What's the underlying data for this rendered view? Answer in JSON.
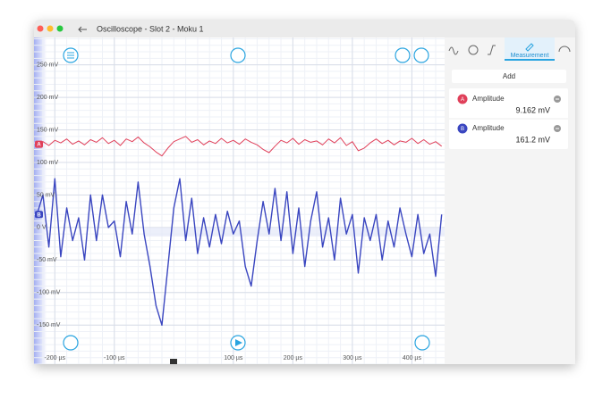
{
  "window": {
    "title": "Oscilloscope - Slot 2 - Moku 1"
  },
  "chart_data": {
    "type": "line",
    "x": [
      -230,
      -220,
      -210,
      -200,
      -190,
      -180,
      -170,
      -160,
      -150,
      -140,
      -130,
      -120,
      -110,
      -100,
      -90,
      -80,
      -70,
      -60,
      -50,
      -40,
      -30,
      -20,
      -10,
      0,
      10,
      20,
      30,
      40,
      50,
      60,
      70,
      80,
      90,
      100,
      110,
      120,
      130,
      140,
      150,
      160,
      170,
      180,
      190,
      200,
      210,
      220,
      230,
      240,
      250,
      260,
      270,
      280,
      290,
      300,
      310,
      320,
      330,
      340,
      350,
      360,
      370,
      380,
      390,
      400,
      410,
      420,
      430,
      440,
      450
    ],
    "series": [
      {
        "name": "A",
        "color": "#e0405a",
        "values": [
          128,
          132,
          126,
          134,
          130,
          136,
          128,
          133,
          127,
          135,
          131,
          138,
          129,
          134,
          126,
          136,
          132,
          139,
          130,
          124,
          116,
          110,
          122,
          132,
          136,
          140,
          131,
          135,
          127,
          133,
          129,
          137,
          130,
          134,
          128,
          136,
          131,
          127,
          120,
          115,
          125,
          134,
          130,
          137,
          128,
          135,
          131,
          133,
          127,
          136,
          130,
          138,
          126,
          132,
          118,
          122,
          130,
          136,
          129,
          134,
          127,
          133,
          131,
          137,
          129,
          135,
          128,
          132,
          125
        ]
      },
      {
        "name": "B",
        "color": "#3a46c0",
        "values": [
          20,
          50,
          -30,
          75,
          -45,
          30,
          -20,
          15,
          -50,
          50,
          -20,
          50,
          0,
          10,
          -45,
          40,
          -10,
          70,
          -10,
          -60,
          -120,
          -150,
          -60,
          30,
          75,
          -20,
          45,
          -40,
          15,
          -30,
          20,
          -25,
          25,
          -10,
          10,
          -60,
          -90,
          -20,
          40,
          -10,
          60,
          -20,
          55,
          -40,
          30,
          -60,
          10,
          55,
          -30,
          15,
          -50,
          45,
          -10,
          20,
          -70,
          15,
          -20,
          20,
          -50,
          10,
          -30,
          30,
          -10,
          -45,
          20,
          -40,
          -10,
          -75,
          20
        ]
      }
    ],
    "xlim": [
      -235,
      455
    ],
    "ylim": [
      -210,
      292
    ],
    "xticks": [
      {
        "value": -200,
        "label": "-200 µs"
      },
      {
        "value": -100,
        "label": "-100 µs"
      },
      {
        "value": 100,
        "label": "100 µs"
      },
      {
        "value": 200,
        "label": "200 µs"
      },
      {
        "value": 300,
        "label": "300 µs"
      },
      {
        "value": 400,
        "label": "400 µs"
      }
    ],
    "yticks": [
      {
        "value": 250,
        "label": "250 mV"
      },
      {
        "value": 200,
        "label": "200 mV"
      },
      {
        "value": 150,
        "label": "150 mV"
      },
      {
        "value": 100,
        "label": "100 mV"
      },
      {
        "value": 50,
        "label": "50 mV"
      },
      {
        "value": 0,
        "label": "0 V"
      },
      {
        "value": -50,
        "label": "-50 mV"
      },
      {
        "value": -100,
        "label": "-100 mV"
      },
      {
        "value": -150,
        "label": "-150 mV"
      }
    ],
    "grid": true
  },
  "panel": {
    "active_tab": "Measurement",
    "add_button": "Add",
    "measurements": [
      {
        "channel": "A",
        "label": "Amplitude",
        "value": "9.162 mV"
      },
      {
        "channel": "B",
        "label": "Amplitude",
        "value": "161.2 mV"
      }
    ]
  }
}
